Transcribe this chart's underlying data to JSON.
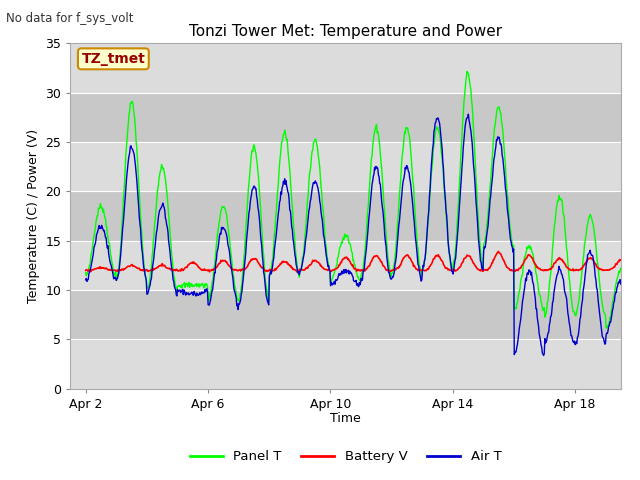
{
  "title": "Tonzi Tower Met: Temperature and Power",
  "subtitle": "No data for f_sys_volt",
  "ylabel": "Temperature (C) / Power (V)",
  "xlabel": "Time",
  "ylim": [
    0,
    35
  ],
  "yticks": [
    0,
    5,
    10,
    15,
    20,
    25,
    30,
    35
  ],
  "xtick_labels": [
    "Apr 2",
    "Apr 6",
    "Apr 10",
    "Apr 14",
    "Apr 18"
  ],
  "xtick_positions": [
    1,
    5,
    9,
    13,
    17
  ],
  "xlim": [
    0.5,
    18.5
  ],
  "n_days": 18,
  "legend_colors": [
    "#00FF00",
    "#FF0000",
    "#0000CC"
  ],
  "legend_labels": [
    "Panel T",
    "Battery V",
    "Air T"
  ],
  "bg_color": "#DCDCDC",
  "annotation_label": "TZ_tmet",
  "annotation_bg": "#FFFFCC",
  "annotation_border": "#CC8800",
  "panel_peaks": [
    18.5,
    29.0,
    22.5,
    10.5,
    18.5,
    24.5,
    26.0,
    25.2,
    15.5,
    26.5,
    26.5,
    26.5,
    32.0,
    28.5,
    14.5,
    19.5,
    17.5,
    12.0
  ],
  "air_peaks": [
    16.5,
    24.5,
    18.5,
    9.5,
    16.5,
    20.5,
    21.0,
    21.0,
    12.0,
    22.5,
    22.5,
    27.5,
    27.5,
    25.5,
    12.0,
    12.0,
    14.0,
    11.0
  ],
  "panel_mins": [
    11.5,
    11.0,
    10.0,
    10.5,
    9.0,
    9.0,
    11.5,
    12.0,
    11.0,
    11.5,
    11.5,
    12.0,
    12.5,
    14.5,
    8.0,
    7.5,
    7.5,
    6.0
  ],
  "air_mins": [
    11.0,
    11.0,
    9.5,
    10.0,
    8.5,
    8.5,
    11.5,
    12.0,
    10.5,
    11.0,
    11.0,
    12.0,
    12.0,
    14.0,
    3.5,
    4.5,
    4.5,
    5.5
  ],
  "batt_base": 12.0,
  "batt_spikes": [
    0.3,
    0.5,
    0.5,
    0.8,
    1.0,
    1.2,
    0.9,
    1.0,
    1.3,
    1.5,
    1.5,
    1.5,
    1.5,
    1.8,
    1.5,
    1.2,
    1.2,
    1.0
  ]
}
